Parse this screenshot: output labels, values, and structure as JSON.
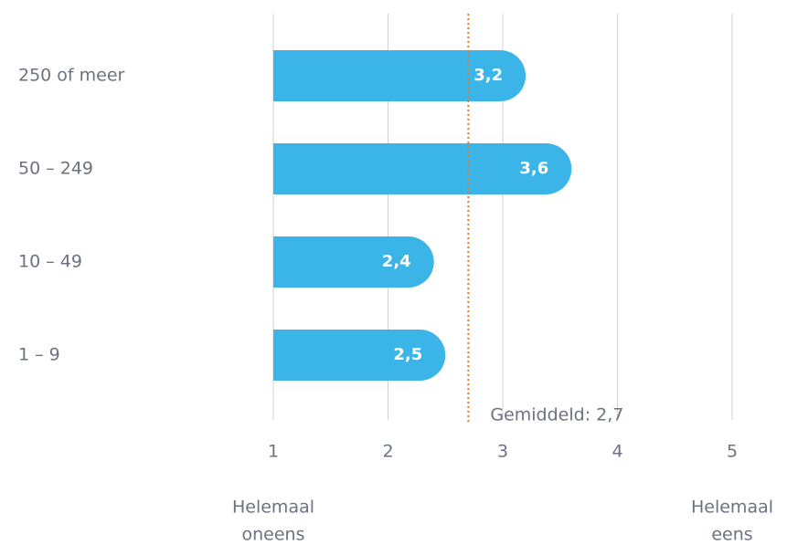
{
  "chart_data": {
    "type": "bar",
    "orientation": "horizontal",
    "categories": [
      "250 of meer",
      "50 – 249",
      "10 – 49",
      "1 – 9"
    ],
    "values": [
      3.2,
      3.6,
      2.4,
      2.5
    ],
    "value_labels": [
      "3,2",
      "3,6",
      "2,4",
      "2,5"
    ],
    "color": "#3bb4e8",
    "xlim": [
      1,
      5
    ],
    "xticks": [
      1,
      2,
      3,
      4,
      5
    ],
    "grid": true,
    "average": {
      "value": 2.7,
      "label": "Gemiddeld: 2,7",
      "color": "#e8772e"
    },
    "x_axis_end_labels": {
      "left": [
        "Helemaal",
        "oneens"
      ],
      "right": [
        "Helemaal",
        "eens"
      ]
    }
  }
}
